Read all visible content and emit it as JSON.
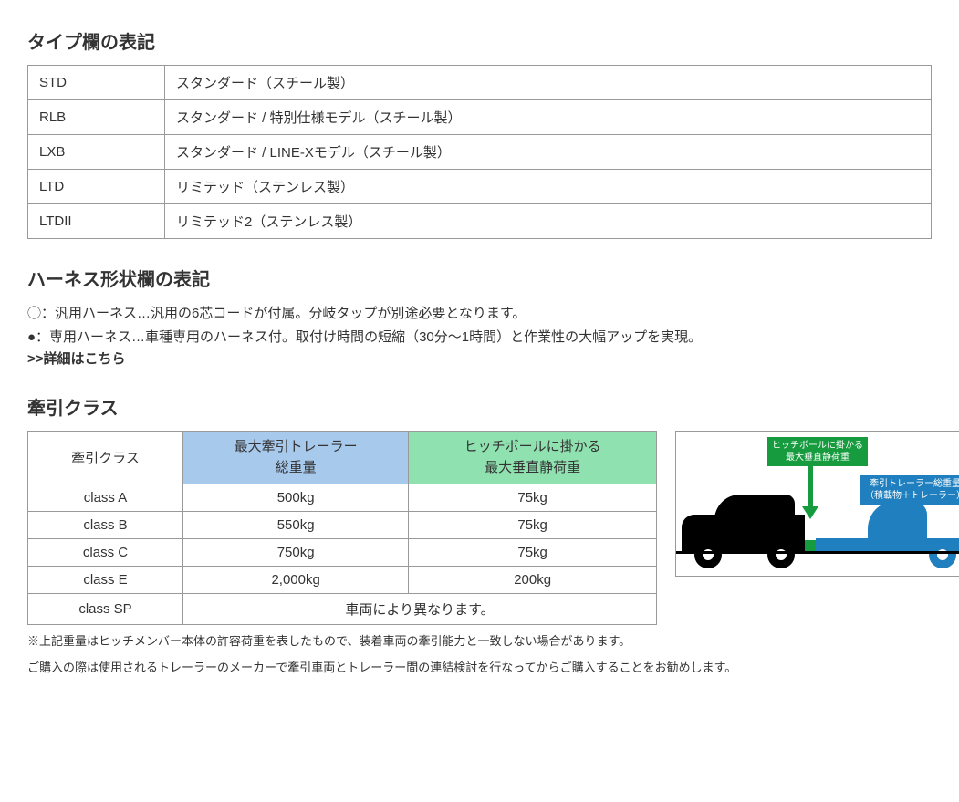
{
  "type_section": {
    "heading": "タイプ欄の表記",
    "rows": [
      {
        "code": "STD",
        "desc": "スタンダード（スチール製）"
      },
      {
        "code": "RLB",
        "desc": "スタンダード / 特別仕様モデル（スチール製）"
      },
      {
        "code": "LXB",
        "desc": "スタンダード / LINE-Xモデル（スチール製）"
      },
      {
        "code": "LTD",
        "desc": "リミテッド（ステンレス製）"
      },
      {
        "code": "LTDII",
        "desc": "リミテッド2（ステンレス製）"
      }
    ]
  },
  "harness_section": {
    "heading": "ハーネス形状欄の表記",
    "line1": "◯：汎用ハーネス…汎用の6芯コードが付属。分岐タップが別途必要となります。",
    "line2": "●：専用ハーネス…車種専用のハーネス付。取付け時間の短縮（30分～1時間）と作業性の大幅アップを実現。",
    "detail_link": ">>詳細はこちら"
  },
  "tow_section": {
    "heading": "牽引クラス",
    "header": {
      "class": "牽引クラス",
      "max_trailer_l1": "最大牽引トレーラー",
      "max_trailer_l2": "総重量",
      "max_vert_l1": "ヒッチボールに掛かる",
      "max_vert_l2": "最大垂直静荷重"
    },
    "header_colors": {
      "blue": "#a7c9ec",
      "green": "#8fe2b0"
    },
    "rows": [
      {
        "class": "class A",
        "trailer": "500kg",
        "vert": "75kg"
      },
      {
        "class": "class B",
        "trailer": "550kg",
        "vert": "75kg"
      },
      {
        "class": "class C",
        "trailer": "750kg",
        "vert": "75kg"
      },
      {
        "class": "class E",
        "trailer": "2,000kg",
        "vert": "200kg"
      }
    ],
    "sp_row": {
      "class": "class SP",
      "note": "車両により異なります。"
    },
    "footnote1": "※上記重量はヒッチメンバー本体の許容荷重を表したもので、装着車両の牽引能力と一致しない場合があります。",
    "footnote2": "ご購入の際は使用されるトレーラーのメーカーで牽引車両とトレーラー間の連結検討を行なってからご購入することをお勧めします。"
  },
  "diagram": {
    "green_label_l1": "ヒッチボールに掛かる",
    "green_label_l2": "最大垂直静荷重",
    "blue_label_l1": "牽引トレーラー総重量",
    "blue_label_l2": "（積載物＋トレーラー）",
    "colors": {
      "car": "#000000",
      "trailer": "#1f7fbf",
      "hitch": "#169b3e"
    }
  }
}
